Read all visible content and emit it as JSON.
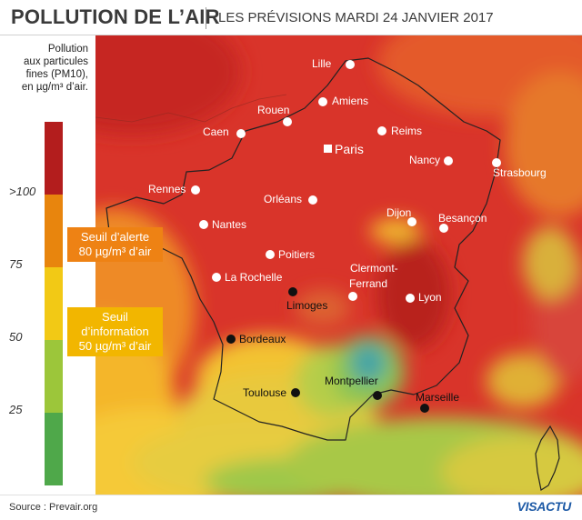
{
  "header": {
    "title": "POLLUTION DE L’AIR",
    "subtitle": "LES PRÉVISIONS MARDI 24 JANVIER 2017"
  },
  "legend": {
    "title_lines": [
      "Pollution",
      "aux particules",
      "fines (PM10),",
      "en µg/m³ d’air."
    ],
    "ticks": [
      ">100",
      "75",
      "50",
      "25"
    ],
    "colors": [
      "#b31d1d",
      "#e8850d",
      "#f2c915",
      "#9cc63a",
      "#4fa84a"
    ]
  },
  "thresholds": {
    "alert": {
      "line1": "Seuil d’alerte",
      "line2": "80 µg/m³ d’air",
      "color": "#ee8214"
    },
    "info": {
      "line1": "Seuil",
      "line2": "d’information",
      "line3": "50 µg/m³ d’air",
      "color": "#f2b600"
    }
  },
  "cities": {
    "lille": "Lille",
    "amiens": "Amiens",
    "rouen": "Rouen",
    "caen": "Caen",
    "paris": "Paris",
    "reims": "Reims",
    "nancy": "Nancy",
    "strasbourg": "Strasbourg",
    "rennes": "Rennes",
    "orleans": "Orléans",
    "dijon": "Dijon",
    "besancon": "Besançon",
    "nantes": "Nantes",
    "poitiers": "Poitiers",
    "larochelle": "La Rochelle",
    "clermont1": "Clermont-",
    "clermont2": "Ferrand",
    "limoges": "Limoges",
    "lyon": "Lyon",
    "bordeaux": "Bordeaux",
    "toulouse": "Toulouse",
    "montpellier": "Montpellier",
    "marseille": "Marseille"
  },
  "footer": {
    "source": "Source : Prevair.org",
    "logo": "VISACTU"
  }
}
